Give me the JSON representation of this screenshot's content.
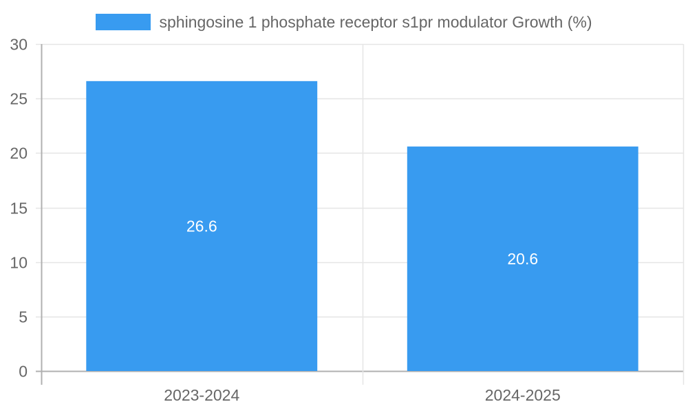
{
  "chart_data": {
    "type": "bar",
    "title": "",
    "categories": [
      "2023-2024",
      "2024-2025"
    ],
    "series": [
      {
        "name": "sphingosine 1 phosphate receptor s1pr modulator Growth (%)",
        "values": [
          26.6,
          20.6
        ],
        "color": "#389bf0"
      }
    ],
    "values": [
      26.6,
      20.6
    ],
    "data_labels": [
      "26.6",
      "20.6"
    ],
    "xlabel": "",
    "ylabel": "",
    "ylim": [
      0,
      30
    ],
    "yticks": [
      0,
      5,
      10,
      15,
      20,
      25,
      30
    ],
    "ytick_labels": [
      "0",
      "5",
      "10",
      "15",
      "20",
      "25",
      "30"
    ],
    "grid": true,
    "legend_position": "top"
  },
  "legend": {
    "label": "sphingosine 1 phosphate receptor s1pr modulator Growth (%)",
    "color": "#389bf0"
  },
  "colors": {
    "bar": "#389bf0",
    "grid": "#e5e5e5",
    "axis": "#b0b0b0",
    "text": "#666666"
  }
}
